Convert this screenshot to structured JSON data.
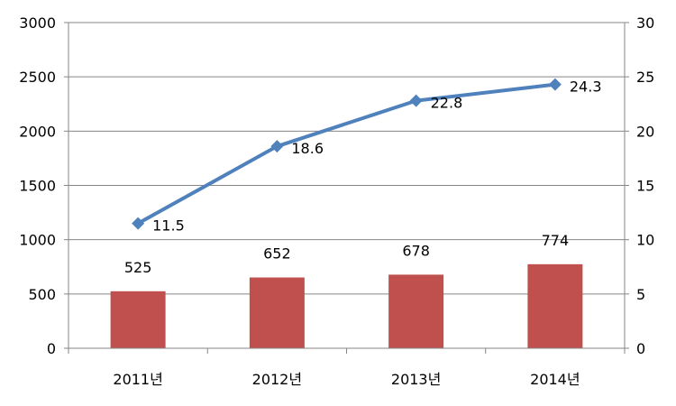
{
  "chart_data": {
    "type": "bar",
    "title": "",
    "xlabel": "",
    "ylabel": "",
    "categories": [
      "2011년",
      "2012년",
      "2013년",
      "2014년"
    ],
    "series": [
      {
        "type": "bar",
        "axis": "left",
        "color": "#c0504d",
        "values": [
          525,
          652,
          678,
          774
        ],
        "labels": [
          "525",
          "652",
          "678",
          "774"
        ]
      },
      {
        "type": "line",
        "axis": "right",
        "color": "#4f81bd",
        "marker": "diamond",
        "values": [
          11.5,
          18.6,
          22.8,
          24.3
        ],
        "labels": [
          "11.5",
          "18.6",
          "22.8",
          "24.3"
        ]
      }
    ],
    "ylim": [
      0,
      3000
    ],
    "y2lim": [
      0,
      30
    ],
    "yticks": [
      "0",
      "500",
      "1000",
      "1500",
      "2000",
      "2500",
      "3000"
    ],
    "y2ticks": [
      "0",
      "5",
      "10",
      "15",
      "20",
      "25",
      "30"
    ],
    "grid": true,
    "legend": "none"
  }
}
